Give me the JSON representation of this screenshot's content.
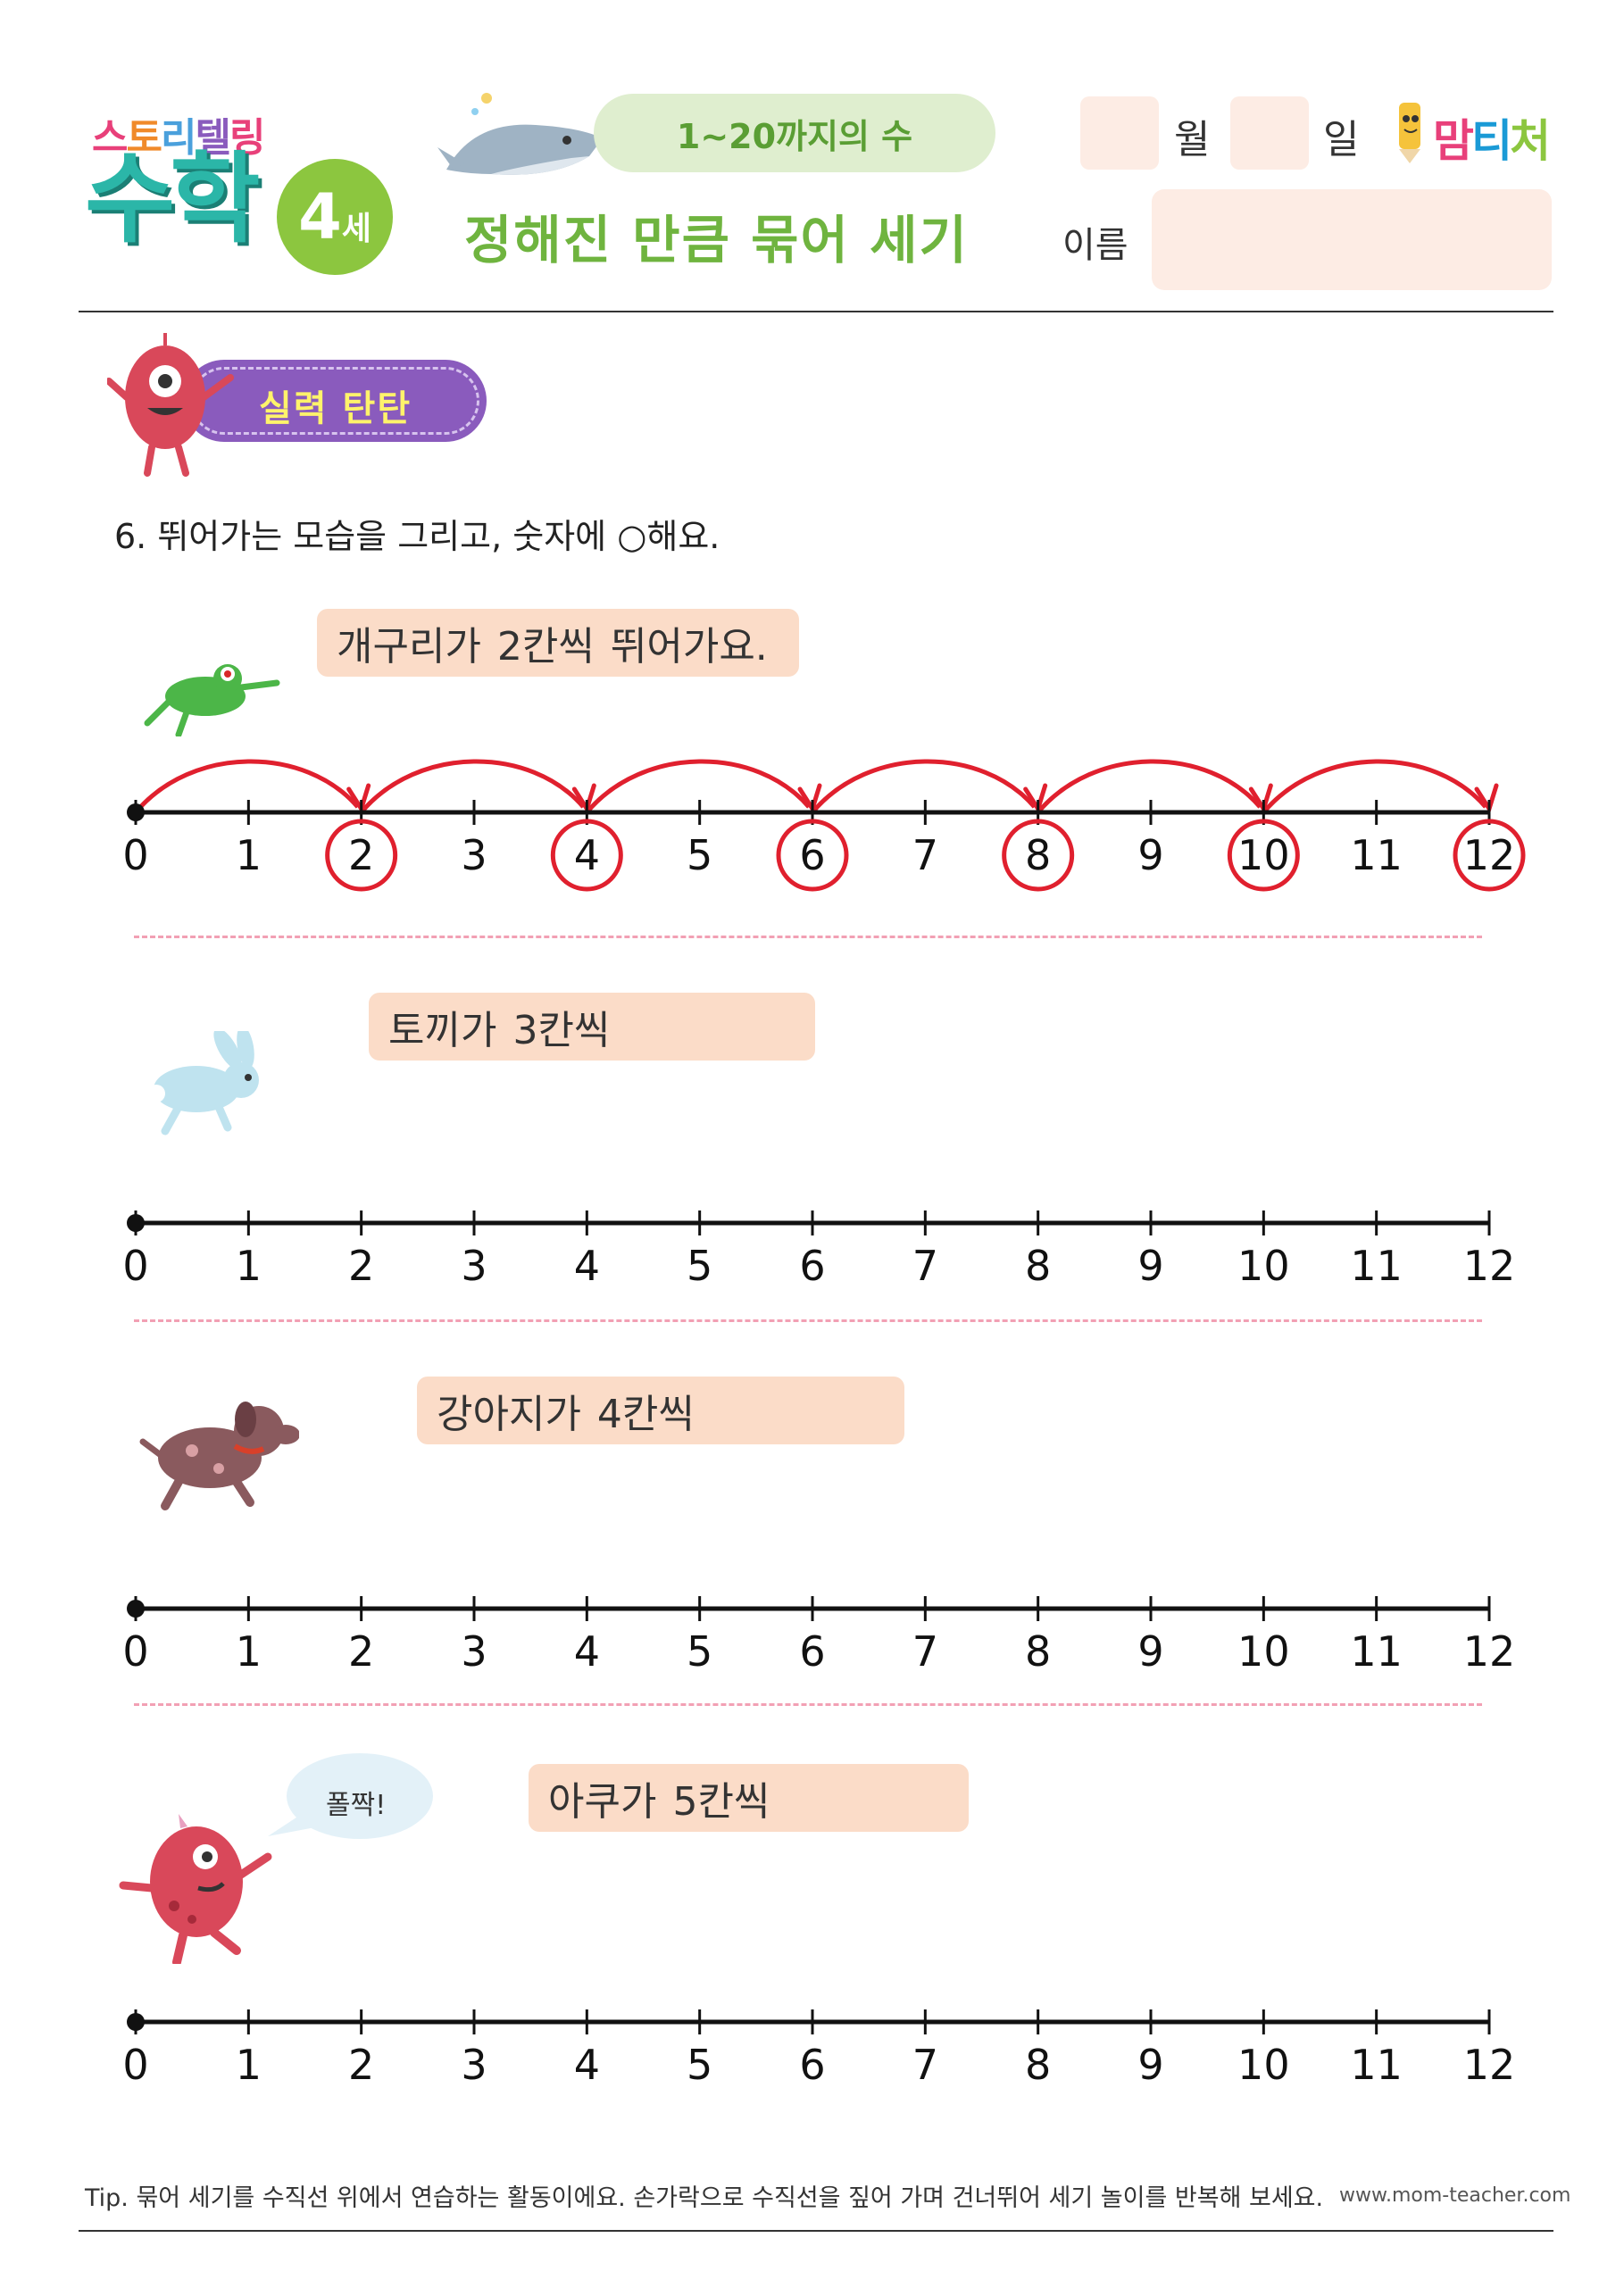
{
  "header": {
    "brand_small": [
      "스",
      "토",
      "리",
      "텔",
      "링"
    ],
    "brand_big": "수학",
    "age_number": "4",
    "age_suffix": "세",
    "range": "1~20까지의 수",
    "title": "정해진 만큼 묶어 세기",
    "month_label": "월",
    "day_label": "일",
    "name_label": "이름",
    "logo": [
      "맘",
      "티",
      "처"
    ]
  },
  "section": {
    "label": "실력 탄탄"
  },
  "instruction": {
    "text_before": "6. 뛰어가는 모습을 그리고, 숫자에 ",
    "circle_symbol": "○",
    "text_after": "해요."
  },
  "problems": [
    {
      "animal": "frog-icon",
      "label_name": "개구리가",
      "label_step": "2칸씩",
      "label_tail": "뛰어가요.",
      "step": 2,
      "circled": [
        2,
        4,
        6,
        8,
        10,
        12
      ],
      "hops": [
        [
          0,
          2
        ],
        [
          2,
          4
        ],
        [
          4,
          6
        ],
        [
          6,
          8
        ],
        [
          8,
          10
        ],
        [
          10,
          12
        ]
      ]
    },
    {
      "animal": "rabbit-icon",
      "label_name": "토끼가",
      "label_step": "3칸씩",
      "step": 3,
      "circled": [],
      "hops": []
    },
    {
      "animal": "puppy-icon",
      "label_name": "강아지가",
      "label_step": "4칸씩",
      "step": 4,
      "circled": [],
      "hops": []
    },
    {
      "animal": "monster-icon",
      "label_name": "아쿠가",
      "label_step": "5칸씩",
      "step": 5,
      "circled": [],
      "hops": [],
      "speech": "폴짝!"
    }
  ],
  "number_line": {
    "min": 0,
    "max": 12,
    "ticks": [
      "0",
      "1",
      "2",
      "3",
      "4",
      "5",
      "6",
      "7",
      "8",
      "9",
      "10",
      "11",
      "12"
    ],
    "hop_color": "#e0202e",
    "line_color": "#111111"
  },
  "footer": {
    "tip": "Tip. 묶어 세기를 수직선 위에서 연습하는 활동이에요. 손가락으로 수직선을 짚어 가며 건너뛰어 세기 놀이를 반복해 보세요.",
    "url": "www.mom-teacher.com"
  },
  "colors": {
    "title_green": "#6fb43f",
    "pill_peach": "#fbdcc8",
    "section_purple": "#8a5bbd",
    "dash_pink": "#f2a0b4"
  }
}
